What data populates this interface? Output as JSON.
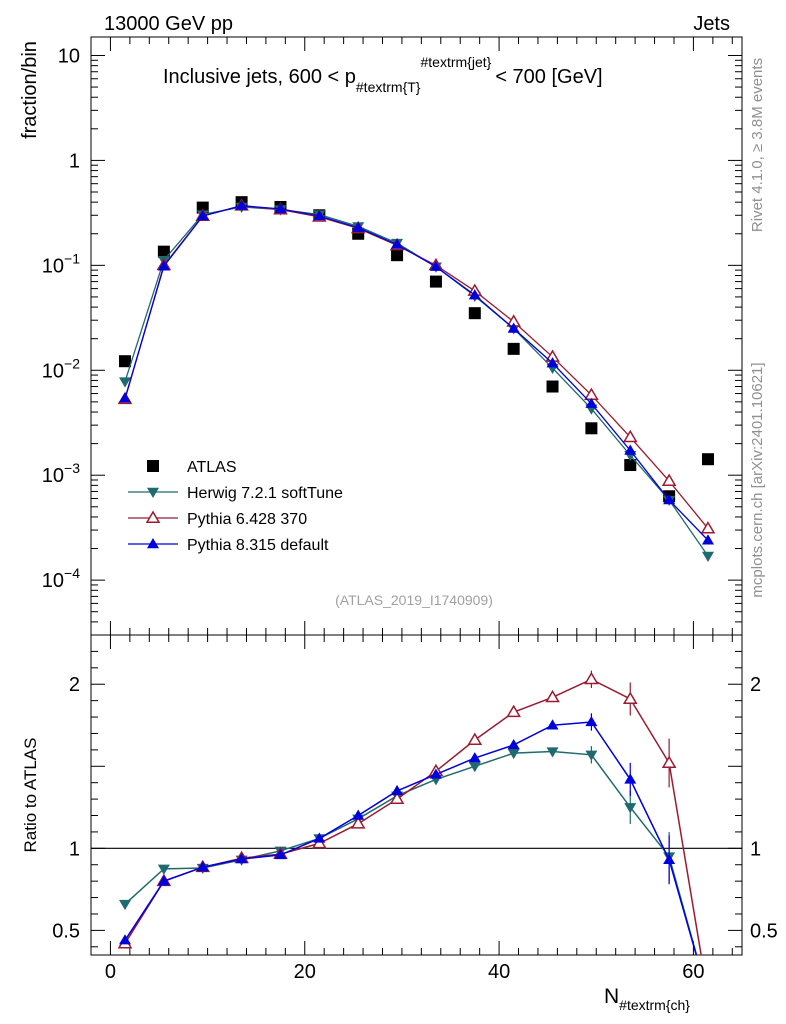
{
  "header": {
    "left_label": "13000 GeV pp",
    "right_label": "Jets"
  },
  "side_labels": {
    "rivet": "Rivet 4.1.0, ≥ 3.8M events",
    "mcplots": "mcplots.cern.ch [arXiv:2401.10621]"
  },
  "chart_data": [
    {
      "type": "line",
      "panel": "main",
      "title": "Inclusive jets, 600 < p_{#textrm{T}}^{#textrm{jet}} < 700 [GeV]",
      "title_parts": {
        "pre": "Inclusive jets, 600 < p",
        "sub": "#textrm{T}",
        "sup": "#textrm{jet}",
        "post": "< 700 [GeV]"
      },
      "ylabel": "fraction/bin",
      "yscale": "log",
      "ylim": [
        3e-05,
        15
      ],
      "xlim": [
        -2,
        65
      ],
      "y_ticks": [
        {
          "value": 10,
          "label": "10"
        },
        {
          "value": 1,
          "label": "1"
        },
        {
          "value": 0.1,
          "base": "10",
          "exp": "−1"
        },
        {
          "value": 0.01,
          "base": "10",
          "exp": "−2"
        },
        {
          "value": 0.001,
          "base": "10",
          "exp": "−3"
        },
        {
          "value": 0.0001,
          "base": "10",
          "exp": "−4"
        }
      ],
      "watermark": "(ATLAS_2019_I1740909)",
      "x": [
        1.5,
        5.5,
        9.5,
        13.5,
        17.5,
        21.5,
        25.5,
        29.5,
        33.5,
        37.5,
        41.5,
        45.5,
        49.5,
        53.5,
        57.5,
        61.5
      ],
      "series": [
        {
          "name": "ATLAS",
          "marker": "square",
          "color": "#000000",
          "values": [
            0.0122,
            0.135,
            0.355,
            0.4,
            0.36,
            0.3,
            0.2,
            0.125,
            0.07,
            0.035,
            0.016,
            0.007,
            0.0028,
            0.00125,
            0.00063,
            0.00142
          ]
        },
        {
          "name": "Herwig 7.2.1 softTune",
          "marker": "triangle-down",
          "color": "#1f6a6e",
          "values": [
            0.0078,
            0.112,
            0.305,
            0.36,
            0.34,
            0.305,
            0.235,
            0.163,
            0.097,
            0.051,
            0.025,
            0.0105,
            0.0043,
            0.00155,
            0.00058,
            0.00017
          ]
        },
        {
          "name": "Pythia 6.428 370",
          "marker": "triangle-up-open",
          "color": "#9b1b30",
          "values": [
            0.0053,
            0.1,
            0.295,
            0.37,
            0.34,
            0.29,
            0.225,
            0.155,
            0.1,
            0.057,
            0.029,
            0.0134,
            0.0058,
            0.0023,
            0.00088,
            0.00031
          ]
        },
        {
          "name": "Pythia 8.315 default",
          "marker": "triangle-up",
          "color": "#0000dd",
          "values": [
            0.0054,
            0.098,
            0.295,
            0.37,
            0.345,
            0.295,
            0.228,
            0.158,
            0.097,
            0.052,
            0.025,
            0.0117,
            0.0048,
            0.00172,
            0.00058,
            0.00024
          ]
        }
      ]
    },
    {
      "type": "line",
      "panel": "ratio",
      "ylabel": "Ratio to ATLAS",
      "xlabel": "N_{#textrm{ch}}",
      "xlabel_parts": {
        "main": "N",
        "sub": "#textrm{ch}"
      },
      "ylim": [
        0.35,
        2.3
      ],
      "xlim": [
        -2,
        65
      ],
      "y_ticks": [
        0.5,
        1,
        2
      ],
      "x_ticks": [
        0,
        20,
        40,
        60
      ],
      "reference_line": 1,
      "x": [
        1.5,
        5.5,
        9.5,
        13.5,
        17.5,
        21.5,
        25.5,
        29.5,
        33.5,
        37.5,
        41.5,
        45.5,
        49.5,
        53.5,
        57.5,
        61.5
      ],
      "series": [
        {
          "name": "Herwig 7.2.1 softTune",
          "color": "#1f6a6e",
          "values": [
            0.66,
            0.875,
            0.88,
            0.93,
            0.985,
            1.06,
            1.18,
            1.32,
            1.42,
            1.5,
            1.58,
            1.59,
            1.57,
            1.25,
            0.95,
            0.1
          ]
        },
        {
          "name": "Pythia 6.428 370",
          "color": "#9b1b30",
          "values": [
            0.42,
            0.8,
            0.885,
            0.94,
            0.965,
            1.03,
            1.15,
            1.3,
            1.47,
            1.66,
            1.83,
            1.92,
            2.03,
            1.91,
            1.52,
            0.1
          ]
        },
        {
          "name": "Pythia 8.315 default",
          "color": "#0000dd",
          "values": [
            0.44,
            0.8,
            0.885,
            0.935,
            0.96,
            1.06,
            1.2,
            1.35,
            1.45,
            1.55,
            1.63,
            1.75,
            1.77,
            1.42,
            0.93,
            0.1
          ]
        }
      ]
    }
  ]
}
